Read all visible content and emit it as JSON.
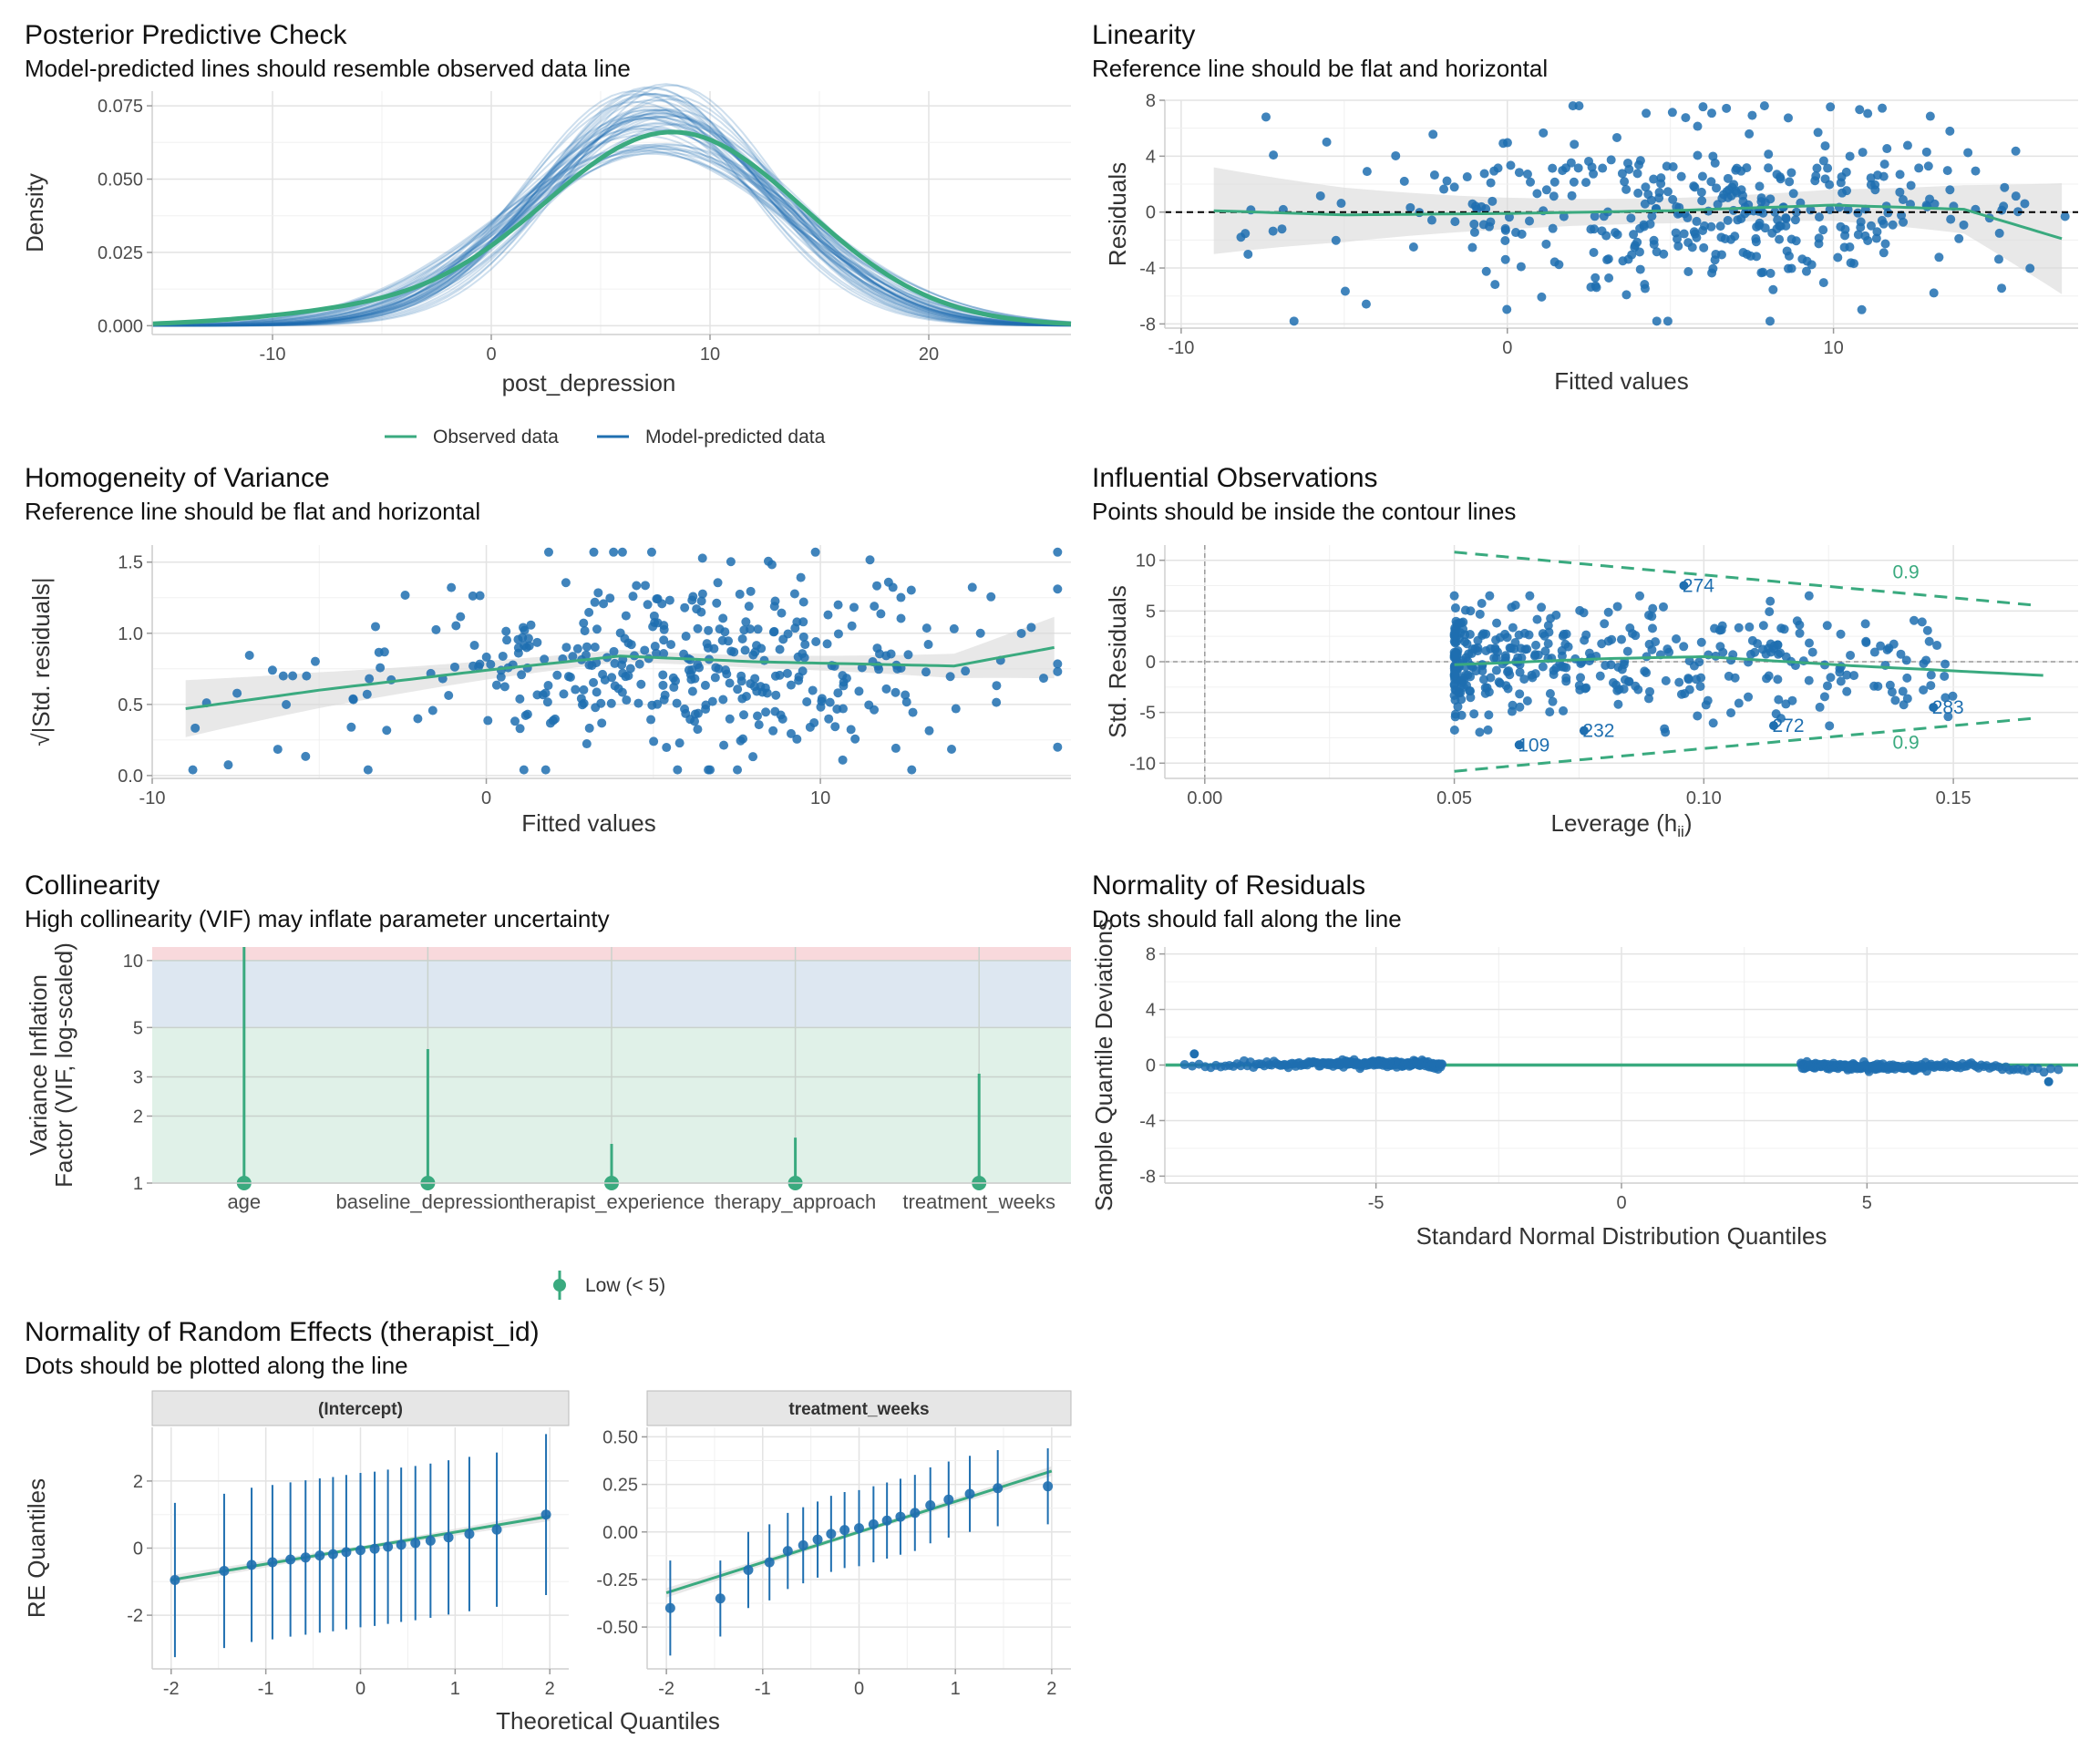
{
  "colors": {
    "green": "#3aaa7f",
    "blue": "#1f6fb0",
    "grid": "#e3e3e3",
    "band": "#d9d9d9",
    "zone_red": "#f8d9dc",
    "zone_blue": "#dde7f1",
    "zone_green": "#e0f1e8",
    "strip": "#e6e6e6"
  },
  "chart_data": [
    {
      "id": "ppc",
      "type": "line",
      "title": "Posterior Predictive Check",
      "subtitle": "Model-predicted lines should resemble observed data line",
      "xlabel": "post_depression",
      "ylabel": "Density",
      "xlim": [
        -15.5,
        26.5
      ],
      "ylim": [
        -0.003,
        0.08
      ],
      "x_ticks": [
        -10,
        0,
        10,
        20
      ],
      "y_ticks": [
        0.0,
        0.025,
        0.05,
        0.075
      ],
      "y_tick_labels": [
        "0.000",
        "0.025",
        "0.050",
        "0.075"
      ],
      "observed": {
        "mean": 8.3,
        "sd": 6.0,
        "peak": 0.066,
        "range": [
          -15.5,
          26.5
        ]
      },
      "model_predicted": {
        "n_draws": 50,
        "peak_range": [
          0.058,
          0.083
        ],
        "mean_range": [
          6.5,
          8.5
        ]
      },
      "legend": [
        "Observed data",
        "Model-predicted data"
      ]
    },
    {
      "id": "linearity",
      "type": "scatter",
      "title": "Linearity",
      "subtitle": "Reference line should be flat and horizontal",
      "xlabel": "Fitted values",
      "ylabel": "Residuals",
      "xlim": [
        -10.5,
        17.5
      ],
      "ylim": [
        -8.3,
        8.0
      ],
      "x_ticks": [
        -10,
        0,
        10
      ],
      "y_ticks": [
        -8,
        -4,
        0,
        4,
        8
      ],
      "reference_line": 0,
      "smooth": [
        [
          -9,
          0.1
        ],
        [
          -5,
          -0.2
        ],
        [
          0,
          -0.1
        ],
        [
          5,
          0.1
        ],
        [
          10,
          0.5
        ],
        [
          14,
          0.2
        ],
        [
          17,
          -1.9
        ]
      ],
      "n_points": 400
    },
    {
      "id": "homogeneity",
      "type": "scatter",
      "title": "Homogeneity of Variance",
      "subtitle": "Reference line should be flat and horizontal",
      "xlabel": "Fitted values",
      "ylabel": "√|Std. residuals|",
      "xlim": [
        -10,
        17.5
      ],
      "ylim": [
        -0.02,
        1.62
      ],
      "x_ticks": [
        -10,
        0,
        10
      ],
      "y_ticks": [
        0.0,
        0.5,
        1.0,
        1.5
      ],
      "y_tick_labels": [
        "0.0",
        "0.5",
        "1.0",
        "1.5"
      ],
      "smooth": [
        [
          -9,
          0.47
        ],
        [
          -5,
          0.6
        ],
        [
          0,
          0.74
        ],
        [
          4,
          0.84
        ],
        [
          8,
          0.8
        ],
        [
          14,
          0.77
        ],
        [
          17,
          0.9
        ]
      ],
      "n_points": 400
    },
    {
      "id": "influential",
      "type": "scatter",
      "title": "Influential Observations",
      "subtitle": "Points should be inside the contour lines",
      "xlabel": "Leverage (h",
      "xlabel_sub": "ii",
      "xlabel_end": ")",
      "ylabel": "Std. Residuals",
      "xlim": [
        -0.008,
        0.175
      ],
      "ylim": [
        -11.5,
        11.5
      ],
      "x_ticks": [
        0.0,
        0.05,
        0.1,
        0.15
      ],
      "x_tick_labels": [
        "0.00",
        "0.05",
        "0.10",
        "0.15"
      ],
      "y_ticks": [
        -10,
        -5,
        0,
        5,
        10
      ],
      "contour_label": "0.9",
      "labeled_points": [
        {
          "label": "274",
          "x": 0.096,
          "y": 7.5
        },
        {
          "label": "283",
          "x": 0.146,
          "y": -4.5
        },
        {
          "label": "272",
          "x": 0.114,
          "y": -6.3
        },
        {
          "label": "232",
          "x": 0.076,
          "y": -6.8
        },
        {
          "label": "109",
          "x": 0.063,
          "y": -8.2
        }
      ],
      "smooth": [
        [
          0.05,
          -0.3
        ],
        [
          0.08,
          0.3
        ],
        [
          0.1,
          0.5
        ],
        [
          0.13,
          -0.4
        ],
        [
          0.17,
          -1.4
        ]
      ],
      "n_points": 400
    },
    {
      "id": "collinearity",
      "type": "bar",
      "title": "Collinearity",
      "subtitle": "High collinearity (VIF) may inflate parameter uncertainty",
      "ylabel_lines": [
        "Variance Inflation",
        "Factor (VIF, log-scaled)"
      ],
      "categories": [
        "age",
        "baseline_depression",
        "therapist_experience",
        "therapy_approach",
        "treatment_weeks"
      ],
      "values": [
        1.0,
        1.0,
        1.0,
        1.0,
        1.0
      ],
      "ci_high": [
        11.5,
        4.0,
        1.5,
        1.6,
        3.1
      ],
      "y_scale": "log",
      "y_ticks": [
        1,
        2,
        3,
        5,
        10
      ],
      "ylim": [
        1,
        11.5
      ],
      "legend": [
        "Low (< 5)"
      ]
    },
    {
      "id": "normality",
      "type": "scatter",
      "title": "Normality of Residuals",
      "subtitle": "Dots should fall along the line",
      "xlabel": "Standard Normal Distribution Quantiles",
      "ylabel": "Sample Quantile Deviations",
      "xlim": [
        -9.3,
        9.3
      ],
      "ylim": [
        -8.5,
        8.5
      ],
      "x_ticks": [
        -5,
        0,
        5
      ],
      "y_ticks": [
        -8,
        -4,
        0,
        4,
        8
      ],
      "n_points": 400
    },
    {
      "id": "random_effects",
      "type": "scatter",
      "title": "Normality of Random Effects (therapist_id)",
      "subtitle": "Dots should be plotted along the line",
      "xlabel": "Theoretical Quantiles",
      "ylabel": "RE Quantiles",
      "facets": [
        {
          "name": "(Intercept)",
          "xlim": [
            -2.2,
            2.2
          ],
          "ylim": [
            -3.6,
            3.6
          ],
          "x_ticks": [
            -2,
            -1,
            0,
            1,
            2
          ],
          "y_ticks": [
            -2,
            0,
            2
          ],
          "fit": [
            [
              -2,
              -0.95
            ],
            [
              2,
              0.95
            ]
          ],
          "points": [
            [
              -1.96,
              -0.95,
              2.3
            ],
            [
              -1.44,
              -0.68,
              2.3
            ],
            [
              -1.15,
              -0.5,
              2.3
            ],
            [
              -0.93,
              -0.42,
              2.3
            ],
            [
              -0.74,
              -0.34,
              2.3
            ],
            [
              -0.58,
              -0.28,
              2.3
            ],
            [
              -0.43,
              -0.22,
              2.3
            ],
            [
              -0.29,
              -0.18,
              2.3
            ],
            [
              -0.15,
              -0.12,
              2.3
            ],
            [
              0.0,
              -0.06,
              2.3
            ],
            [
              0.15,
              -0.02,
              2.3
            ],
            [
              0.29,
              0.04,
              2.3
            ],
            [
              0.43,
              0.1,
              2.3
            ],
            [
              0.58,
              0.15,
              2.3
            ],
            [
              0.74,
              0.22,
              2.3
            ],
            [
              0.93,
              0.32,
              2.3
            ],
            [
              1.15,
              0.42,
              2.3
            ],
            [
              1.44,
              0.55,
              2.3
            ],
            [
              1.96,
              1.0,
              2.4
            ]
          ]
        },
        {
          "name": "treatment_weeks",
          "xlim": [
            -2.2,
            2.2
          ],
          "ylim": [
            -0.72,
            0.55
          ],
          "x_ticks": [
            -2,
            -1,
            0,
            1,
            2
          ],
          "y_ticks": [
            -0.5,
            -0.25,
            0.0,
            0.25,
            0.5
          ],
          "y_tick_labels": [
            "-0.50",
            "-0.25",
            "0.00",
            "0.25",
            "0.50"
          ],
          "fit": [
            [
              -2,
              -0.32
            ],
            [
              2,
              0.32
            ]
          ],
          "points": [
            [
              -1.96,
              -0.4,
              0.25
            ],
            [
              -1.44,
              -0.35,
              0.2
            ],
            [
              -1.15,
              -0.2,
              0.2
            ],
            [
              -0.93,
              -0.16,
              0.2
            ],
            [
              -0.74,
              -0.1,
              0.2
            ],
            [
              -0.58,
              -0.07,
              0.2
            ],
            [
              -0.43,
              -0.04,
              0.2
            ],
            [
              -0.29,
              -0.01,
              0.2
            ],
            [
              -0.15,
              0.01,
              0.2
            ],
            [
              0.0,
              0.02,
              0.2
            ],
            [
              0.15,
              0.04,
              0.2
            ],
            [
              0.29,
              0.06,
              0.2
            ],
            [
              0.43,
              0.08,
              0.2
            ],
            [
              0.58,
              0.1,
              0.2
            ],
            [
              0.74,
              0.14,
              0.2
            ],
            [
              0.93,
              0.17,
              0.2
            ],
            [
              1.15,
              0.2,
              0.2
            ],
            [
              1.44,
              0.23,
              0.2
            ],
            [
              1.96,
              0.24,
              0.2
            ]
          ]
        }
      ]
    }
  ]
}
